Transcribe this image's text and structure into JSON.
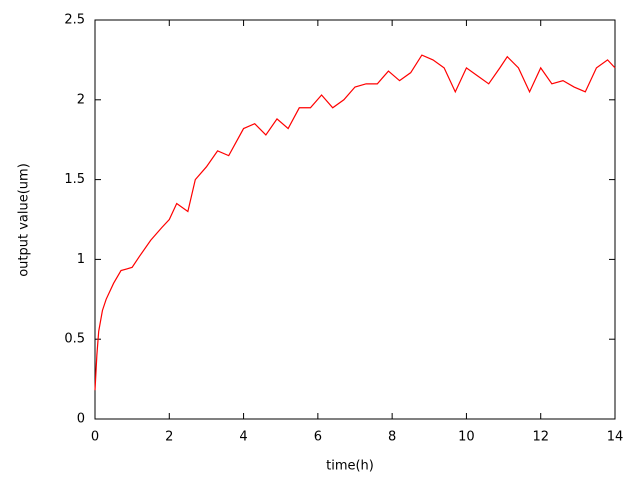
{
  "chart_data": {
    "type": "line",
    "x_label": "time(h)",
    "y_label": "output value(um)",
    "x": [
      0,
      0.05,
      0.1,
      0.2,
      0.3,
      0.5,
      0.7,
      1.0,
      1.2,
      1.5,
      1.8,
      2.0,
      2.2,
      2.5,
      2.7,
      3.0,
      3.3,
      3.6,
      4.0,
      4.3,
      4.6,
      4.9,
      5.2,
      5.5,
      5.8,
      6.1,
      6.4,
      6.7,
      7.0,
      7.3,
      7.6,
      7.9,
      8.2,
      8.5,
      8.8,
      9.1,
      9.4,
      9.7,
      10.0,
      10.3,
      10.6,
      10.9,
      11.1,
      11.4,
      11.7,
      12.0,
      12.3,
      12.6,
      12.9,
      13.2,
      13.5,
      13.8,
      14.0
    ],
    "series": [
      {
        "color": "#ff0000",
        "values": [
          0.18,
          0.4,
          0.55,
          0.68,
          0.75,
          0.85,
          0.93,
          0.95,
          1.02,
          1.12,
          1.2,
          1.25,
          1.35,
          1.3,
          1.5,
          1.58,
          1.68,
          1.65,
          1.82,
          1.85,
          1.78,
          1.88,
          1.82,
          1.95,
          1.95,
          2.03,
          1.95,
          2.0,
          2.08,
          2.1,
          2.1,
          2.18,
          2.12,
          2.17,
          2.28,
          2.25,
          2.2,
          2.05,
          2.2,
          2.15,
          2.1,
          2.2,
          2.27,
          2.2,
          2.05,
          2.2,
          2.1,
          2.12,
          2.08,
          2.05,
          2.2,
          2.25,
          2.2
        ]
      }
    ],
    "xlim": [
      0,
      14
    ],
    "xticks": [
      0,
      2,
      4,
      6,
      8,
      10,
      12,
      14
    ],
    "ylim": [
      0,
      2.5
    ],
    "yticks": [
      0,
      0.5,
      1,
      1.5,
      2,
      2.5
    ],
    "grid": false
  }
}
